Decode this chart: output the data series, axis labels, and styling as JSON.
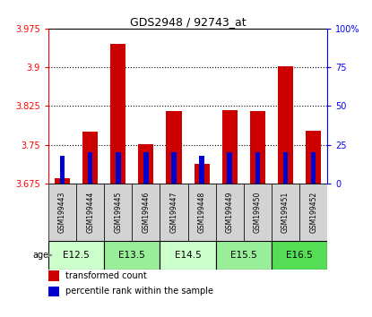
{
  "title": "GDS2948 / 92743_at",
  "samples": [
    "GSM199443",
    "GSM199444",
    "GSM199445",
    "GSM199446",
    "GSM199447",
    "GSM199448",
    "GSM199449",
    "GSM199450",
    "GSM199451",
    "GSM199452"
  ],
  "age_groups": [
    {
      "label": "E12.5",
      "samples": [
        0,
        1
      ],
      "color": "#ccffcc"
    },
    {
      "label": "E13.5",
      "samples": [
        2,
        3
      ],
      "color": "#99ee99"
    },
    {
      "label": "E14.5",
      "samples": [
        4,
        5
      ],
      "color": "#ccffcc"
    },
    {
      "label": "E15.5",
      "samples": [
        6,
        7
      ],
      "color": "#99ee99"
    },
    {
      "label": "E16.5",
      "samples": [
        8,
        9
      ],
      "color": "#55dd55"
    }
  ],
  "transformed_count": [
    3.685,
    3.775,
    3.945,
    3.752,
    3.815,
    3.714,
    3.818,
    3.816,
    3.902,
    3.778
  ],
  "percentile_rank": [
    18,
    20,
    20,
    20,
    20,
    18,
    20,
    20,
    20,
    20
  ],
  "y_min": 3.675,
  "y_max": 3.975,
  "y_ticks": [
    3.675,
    3.75,
    3.825,
    3.9,
    3.975
  ],
  "y_tick_labels": [
    "3.675",
    "3.75",
    "3.825",
    "3.9",
    "3.975"
  ],
  "right_y_ticks": [
    0,
    25,
    50,
    75,
    100
  ],
  "right_y_labels": [
    "0",
    "25",
    "50",
    "75",
    "100%"
  ],
  "bar_color": "#cc0000",
  "percentile_color": "#0000cc",
  "gridlines": [
    3.75,
    3.825,
    3.9
  ]
}
